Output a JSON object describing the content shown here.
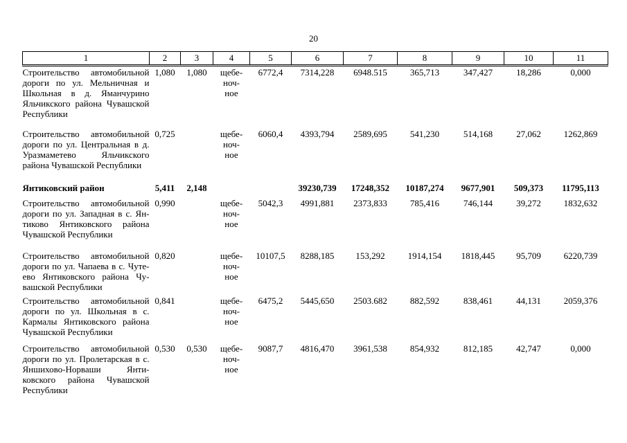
{
  "page": {
    "number": "20"
  },
  "table": {
    "header": [
      "1",
      "2",
      "3",
      "4",
      "5",
      "6",
      "7",
      "8",
      "9",
      "10",
      "11"
    ],
    "rows": [
      {
        "bold": false,
        "cells": [
          "Строительство автомобильной дороги по ул. Мельничная и Школьная в д. Яманчурино Яльчикского района Чувашской Республики",
          "1,080",
          "1,080",
          "щебе-\nноч-\nное",
          "6772,4",
          "7314,228",
          "6948.515",
          "365,713",
          "347,427",
          "18,286",
          "0,000"
        ]
      },
      {
        "bold": false,
        "cells": [
          "Строительство автомобильной дороги по ул. Центральная в д. Уразмаметево Яльчикского района Чувашской Республики",
          "0,725",
          "",
          "щебе-\nноч-\nное",
          "6060,4",
          "4393,794",
          "2589,695",
          "541,230",
          "514,168",
          "27,062",
          "1262,869"
        ]
      },
      {
        "bold": true,
        "cells": [
          "Янтиковский район",
          "5,411",
          "2,148",
          "",
          "",
          "39230,739",
          "17248,352",
          "10187,274",
          "9677,901",
          "509,373",
          "11795,113"
        ]
      },
      {
        "bold": false,
        "cells": [
          "Строительство автомобильной дороги по ул. Западная в с. Ян-тиково Янтиковского района Чувашской Республики",
          "0,990",
          "",
          "щебе-\nноч-\nное",
          "5042,3",
          "4991,881",
          "2373,833",
          "785,416",
          "746,144",
          "39,272",
          "1832,632"
        ]
      },
      {
        "bold": false,
        "cells": [
          "Строительство автомобильной дороги по ул. Чапаева в с. Чуте-ево Янтиковского района Чу-вашской Республики",
          "0,820",
          "",
          "щебе-\nноч-\nное",
          "10107,5",
          "8288,185",
          "153,292",
          "1914,154",
          "1818,445",
          "95,709",
          "6220,739"
        ]
      },
      {
        "bold": false,
        "cells": [
          "Строительство автомобильной дороги по ул. Школьная в с. Кармалы Янтиковского района Чувашской Республики",
          "0,841",
          "",
          "щебе-\nноч-\nное",
          "6475,2",
          "5445,650",
          "2503.682",
          "882,592",
          "838,461",
          "44,131",
          "2059,376"
        ]
      },
      {
        "bold": false,
        "cells": [
          "Строительство автомобильной дороги по ул. Пролетарская в с. Яншихово-Норваши Янти-ковского района Чувашской Республики",
          "0,530",
          "0,530",
          "щебе-\nноч-\nное",
          "9087,7",
          "4816,470",
          "3961,538",
          "854,932",
          "812,185",
          "42,747",
          "0,000"
        ]
      }
    ]
  }
}
